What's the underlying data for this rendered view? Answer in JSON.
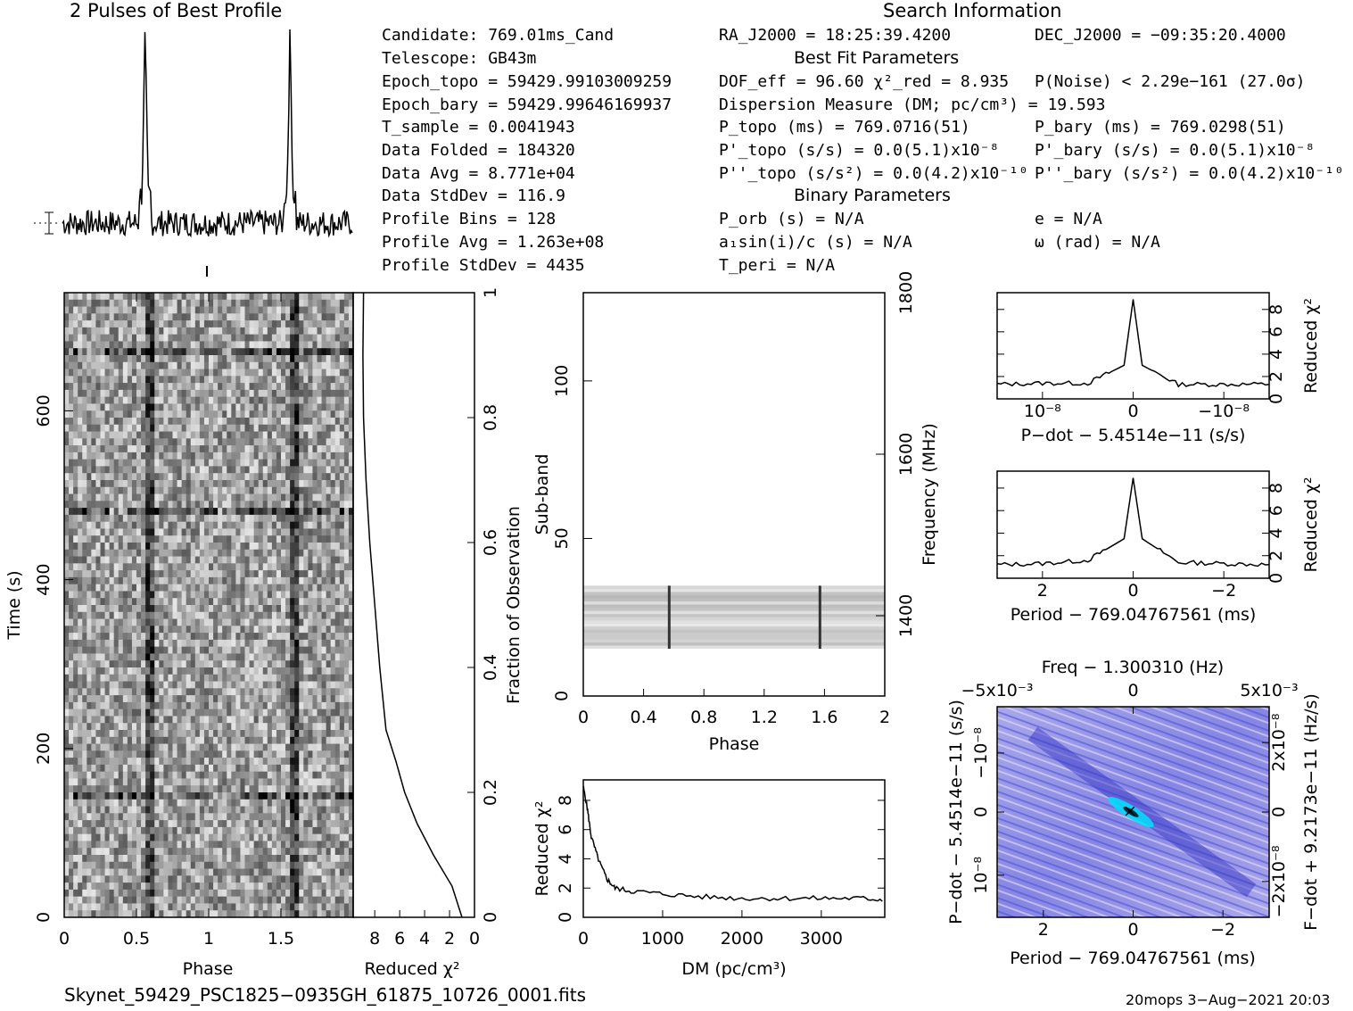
{
  "titles": {
    "profile": "2 Pulses of Best Profile",
    "search": "Search Information",
    "best_fit": "Best Fit Parameters",
    "binary": "Binary Parameters"
  },
  "info_left": [
    "Candidate:  769.01ms_Cand",
    "Telescope:  GB43m",
    "Epoch_topo = 59429.99103009259",
    "Epoch_bary = 59429.99646169937",
    "T_sample   =  0.0041943",
    "Data Folded    =  184320",
    "Data Avg       =  8.771e+04",
    "Data StdDev    =  116.9",
    "Profile Bins   =  128",
    "Profile Avg    =  1.263e+08",
    "Profile StdDev =  4435"
  ],
  "info_mid": [
    "RA_J2000 = 18:25:39.4200",
    "DOF_eff = 96.60  χ²_red = 8.935",
    "Dispersion Measure (DM; pc/cm³) = 19.593",
    "P_topo (ms) =  769.0716(51)",
    "P'_topo (s/s) = 0.0(5.1)x10⁻⁸",
    "P''_topo (s/s²) = 0.0(4.2)x10⁻¹⁰",
    "P_orb (s) = N/A",
    "a₁sin(i)/c (s) = N/A",
    "T_peri = N/A"
  ],
  "info_right": [
    "DEC_J2000 = −09:35:20.4000",
    "P(Noise) < 2.29e−161  (27.0σ)",
    "P_bary (ms) =  769.0298(51)",
    "P'_bary (s/s) = 0.0(5.1)x10⁻⁸",
    "P''_bary (s/s²) = 0.0(4.2)x10⁻¹⁰",
    "e = N/A",
    "ω (rad) = N/A"
  ],
  "footer": {
    "filename": "Skynet_59429_PSC1825−0935GH_61875_10726_0001.fits",
    "stamp": "20mops  3−Aug−2021 20:03"
  },
  "colors": {
    "ink": "#000000",
    "ppdot_bg": "#7b7ce0",
    "ppdot_peak": "#00e0ff"
  },
  "chart_data": [
    {
      "type": "line",
      "title": "2 Pulses of Best Profile",
      "x": [
        0.0,
        0.55,
        0.57,
        0.58,
        0.6,
        1.0,
        1.55,
        1.57,
        1.58,
        1.6,
        2.0
      ],
      "y": [
        0.05,
        0.1,
        1.0,
        0.15,
        0.05,
        0.05,
        0.1,
        1.0,
        0.15,
        0.05,
        0.05
      ]
    },
    {
      "type": "heatmap",
      "xlabel": "Phase",
      "ylabel": "Time (s)",
      "x_ticks": [
        "0",
        "0.5",
        "1",
        "1.5"
      ],
      "y_ticks": [
        "0",
        "200",
        "400",
        "600"
      ],
      "xlim": [
        0,
        2
      ],
      "ylim": [
        0,
        740
      ]
    },
    {
      "type": "line",
      "xlabel": "Reduced χ²",
      "ylabel": "Fraction of Observation",
      "x_ticks": [
        "8",
        "6",
        "4",
        "2",
        "0"
      ],
      "y_ticks": [
        "0",
        "0.2",
        "0.4",
        "0.6",
        "0.8",
        "1"
      ],
      "frac": [
        0.0,
        0.05,
        0.1,
        0.15,
        0.2,
        0.25,
        0.3,
        0.4,
        0.5,
        0.6,
        0.7,
        0.8,
        0.9,
        1.0
      ],
      "chi2": [
        1.0,
        1.8,
        3.3,
        4.6,
        5.6,
        6.3,
        7.1,
        7.6,
        8.0,
        8.4,
        8.7,
        8.9,
        8.95,
        8.9
      ]
    },
    {
      "type": "heatmap",
      "xlabel": "Phase",
      "ylabel": "Sub-band",
      "y2label": "Frequency (MHz)",
      "x_ticks": [
        "0",
        "0.4",
        "0.8",
        "1.2",
        "1.6",
        "2"
      ],
      "y_ticks": [
        "0",
        "50",
        "100"
      ],
      "y2_ticks": [
        "1400",
        "1600",
        "1800"
      ],
      "band_range": [
        15,
        35
      ]
    },
    {
      "type": "line",
      "xlabel": "DM (pc/cm³)",
      "ylabel": "Reduced χ²",
      "x_ticks": [
        "0",
        "1000",
        "2000",
        "3000"
      ],
      "y_ticks": [
        "0",
        "2",
        "4",
        "6",
        "8"
      ],
      "x": [
        0,
        50,
        100,
        200,
        300,
        400,
        600,
        1000,
        1500,
        2000,
        2500,
        3000,
        3500,
        3800
      ],
      "y": [
        8.9,
        7.5,
        5.5,
        3.8,
        2.6,
        2.0,
        1.8,
        1.6,
        1.4,
        1.3,
        1.3,
        1.3,
        1.3,
        1.2
      ]
    },
    {
      "type": "line",
      "xlabel": "P−dot − 5.4514e−11 (s/s)",
      "ylabel": "Reduced χ²",
      "x_ticks": [
        "10⁻⁸",
        "0",
        "−10⁻⁸"
      ],
      "y_ticks": [
        "0",
        "2",
        "4",
        "6",
        "8"
      ],
      "x": [
        -1.5,
        -1.0,
        -0.5,
        -0.1,
        0,
        0.1,
        0.5,
        1.0,
        1.5
      ],
      "y": [
        1.3,
        1.4,
        1.4,
        3.0,
        8.9,
        3.0,
        1.3,
        1.3,
        1.3
      ]
    },
    {
      "type": "line",
      "xlabel": "Period − 769.04767561 (ms)",
      "ylabel": "Reduced χ²",
      "x_ticks": [
        "2",
        "0",
        "−2"
      ],
      "y_ticks": [
        "0",
        "2",
        "4",
        "6",
        "8"
      ],
      "x": [
        3,
        2,
        1,
        0.2,
        0,
        -0.2,
        -1,
        -2,
        -3
      ],
      "y": [
        1.2,
        1.3,
        1.6,
        3.5,
        8.9,
        3.5,
        1.4,
        1.3,
        1.2
      ]
    },
    {
      "type": "heatmap",
      "title": "Freq − 1.300310 (Hz)",
      "xlabel": "Period − 769.04767561 (ms)",
      "ylabel": "P−dot − 5.4514e−11 (s/s)",
      "y2label": "F−dot + 9.2173e−11 (Hz/s)",
      "x_ticks": [
        "2",
        "0",
        "−2"
      ],
      "x2_ticks": [
        "−5x10⁻³",
        "0",
        "5x10⁻³"
      ],
      "y_ticks": [
        "−10⁻⁸",
        "0",
        "10⁻⁸"
      ],
      "y2_ticks": [
        "2x10⁻⁸",
        "0",
        "−2x10⁻⁸"
      ]
    }
  ]
}
